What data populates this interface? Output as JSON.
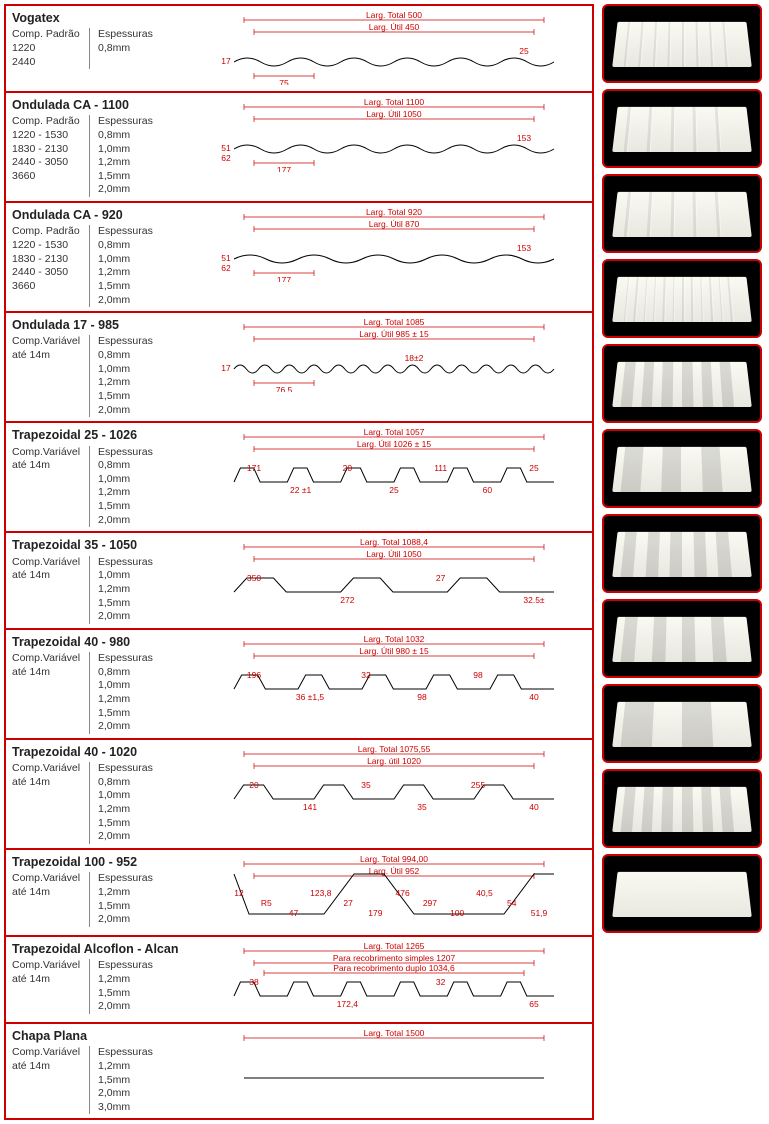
{
  "colors": {
    "border": "#c00",
    "text": "#333",
    "dim": "#c00",
    "photo_bg": "#000"
  },
  "products": [
    {
      "name": "Vogatex",
      "comp_label": "Comp. Padrão",
      "comp": [
        "1220",
        "2440"
      ],
      "esp_label": "Espessuras",
      "esp": [
        "0,8mm"
      ],
      "diagram": {
        "type": "wave",
        "waves": 6,
        "larg_total": "Larg. Total 500",
        "larg_util": "Larg. Útil 450",
        "h_left": "17",
        "pitch": "75",
        "seg": "25"
      },
      "photo_style": "corrugated-fine"
    },
    {
      "name": "Ondulada CA - 1100",
      "comp_label": "Comp. Padrão",
      "comp": [
        "1220 - 1530",
        "1830 - 2130",
        "2440 - 3050",
        "3660"
      ],
      "esp_label": "Espessuras",
      "esp": [
        "0,8mm",
        "1,0mm",
        "1,2mm",
        "1,5mm",
        "2,0mm"
      ],
      "diagram": {
        "type": "wave",
        "waves": 6,
        "larg_total": "Larg. Total 1100",
        "larg_util": "Larg. Útil 1050",
        "h_left": "51",
        "h_left2": "62",
        "pitch": "177",
        "seg": "153"
      },
      "photo_style": "corrugated-wide"
    },
    {
      "name": "Ondulada CA - 920",
      "comp_label": "Comp. Padrão",
      "comp": [
        "1220 - 1530",
        "1830 - 2130",
        "2440 - 3050",
        "3660"
      ],
      "esp_label": "Espessuras",
      "esp": [
        "0,8mm",
        "1,0mm",
        "1,2mm",
        "1,5mm",
        "2,0mm"
      ],
      "diagram": {
        "type": "wave",
        "waves": 5,
        "larg_total": "Larg. Total 920",
        "larg_util": "Larg. Útil 870",
        "h_left": "51",
        "h_left2": "62",
        "pitch": "177",
        "seg": "153"
      },
      "photo_style": "corrugated-med"
    },
    {
      "name": "Ondulada 17 - 985",
      "comp_label": "Comp.Variável",
      "comp": [
        "até 14m"
      ],
      "esp_label": "Espessuras",
      "esp": [
        "0,8mm",
        "1,0mm",
        "1,2mm",
        "1,5mm",
        "2,0mm"
      ],
      "diagram": {
        "type": "wave",
        "waves": 13,
        "larg_total": "Larg. Total 1085",
        "larg_util": "Larg. Útil 985 ± 15",
        "h_left": "17",
        "pitch": "76,5",
        "seg": "18±2"
      },
      "photo_style": "corrugated-vfine"
    },
    {
      "name": "Trapezoidal 25 - 1026",
      "comp_label": "Comp.Variável",
      "comp": [
        "até 14m"
      ],
      "esp_label": "Espessuras",
      "esp": [
        "0,8mm",
        "1,0mm",
        "1,2mm",
        "1,5mm",
        "2,0mm"
      ],
      "diagram": {
        "type": "trap",
        "ribs": 6,
        "larg_total": "Larg. Total 1057",
        "larg_util": "Larg. Útil 1026 ± 15",
        "dims": [
          "171",
          "22 ±1",
          "20",
          "25",
          "111",
          "60",
          "25"
        ]
      },
      "photo_style": "trap-6"
    },
    {
      "name": "Trapezoidal 35 - 1050",
      "comp_label": "Comp.Variável",
      "comp": [
        "até 14m"
      ],
      "esp_label": "Espessuras",
      "esp": [
        "1,0mm",
        "1,2mm",
        "1,5mm",
        "2,0mm"
      ],
      "diagram": {
        "type": "trap",
        "ribs": 3,
        "larg_total": "Larg. Total  1088,4",
        "larg_util": "Larg. Útil 1050",
        "dims": [
          "350",
          "272",
          "27",
          "32.5±"
        ]
      },
      "photo_style": "trap-3"
    },
    {
      "name": "Trapezoidal 40 - 980",
      "comp_label": "Comp.Variável",
      "comp": [
        "até 14m"
      ],
      "esp_label": "Espessuras",
      "esp": [
        "0,8mm",
        "1,0mm",
        "1,2mm",
        "1,5mm",
        "2,0mm"
      ],
      "diagram": {
        "type": "trap",
        "ribs": 5,
        "larg_total": "Larg. Total  1032",
        "larg_util": "Larg. Útil 980 ± 15",
        "dims": [
          "196",
          "36 ±1,5",
          "32",
          "98",
          "98",
          "40"
        ]
      },
      "photo_style": "trap-5"
    },
    {
      "name": "Trapezoidal 40 - 1020",
      "comp_label": "Comp.Variável",
      "comp": [
        "até 14m"
      ],
      "esp_label": "Espessuras",
      "esp": [
        "0,8mm",
        "1,0mm",
        "1,2mm",
        "1,5mm",
        "2,0mm"
      ],
      "diagram": {
        "type": "trap",
        "ribs": 4,
        "larg_total": "Larg. Total  1075,55",
        "larg_util": "Larg. útil  1020",
        "dims": [
          "20",
          "141",
          "35",
          "35",
          "255",
          "40"
        ]
      },
      "photo_style": "trap-4"
    },
    {
      "name": "Trapezoidal 100 - 952",
      "comp_label": "Comp.Variável",
      "comp": [
        "até 14m"
      ],
      "esp_label": "Espessuras",
      "esp": [
        "1,2mm",
        "1,5mm",
        "2,0mm"
      ],
      "diagram": {
        "type": "trap-deep",
        "ribs": 2,
        "larg_total": "Larg. Total  994,00",
        "larg_util": "Larg. Útil  952",
        "dims": [
          "12",
          "R5",
          "47",
          "123,8",
          "27",
          "179",
          "476",
          "297",
          "100",
          "40,5",
          "54",
          "51,9"
        ]
      },
      "photo_style": "trap-deep"
    },
    {
      "name": "Trapezoidal Alcoflon - Alcan",
      "comp_label": "Comp.Variável",
      "comp": [
        "até 14m"
      ],
      "esp_label": "Espessuras",
      "esp": [
        "1,2mm",
        "1,5mm",
        "2,0mm"
      ],
      "diagram": {
        "type": "trap",
        "ribs": 6,
        "larg_total": "Larg. Total 1265",
        "larg_util": "Para recobrimento simples 1207",
        "larg_util2": "Para recobrimento duplo 1034,6",
        "dims": [
          "38",
          "172,4",
          "32",
          "65"
        ]
      },
      "photo_style": "trap-6b"
    },
    {
      "name": "Chapa Plana",
      "comp_label": "Comp.Variável",
      "comp": [
        "até 14m"
      ],
      "esp_label": "Espessuras",
      "esp": [
        "1,2mm",
        "1,5mm",
        "2,0mm",
        "3,0mm"
      ],
      "diagram": {
        "type": "flat",
        "larg_total": "Larg. Total 1500"
      },
      "photo_style": "flat"
    }
  ]
}
